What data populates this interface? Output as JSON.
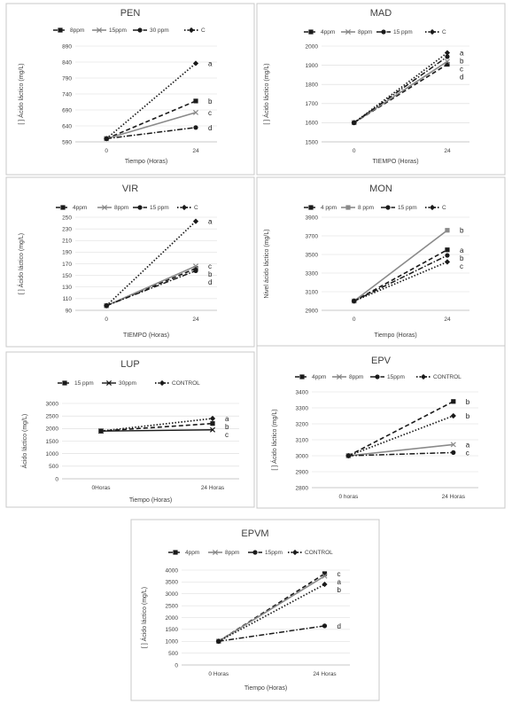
{
  "chart_data": [
    {
      "type": "line",
      "title": "PEN",
      "xlabel": "Tiempo (Horas)",
      "ylabel": "[ ] Ácido láctico (mg/L)",
      "categories": [
        "0",
        "24"
      ],
      "yticks": [
        "590",
        "640",
        "690",
        "740",
        "790",
        "840",
        "890"
      ],
      "ylim": [
        590,
        890
      ],
      "series": [
        {
          "name": "8ppm",
          "values": [
            600,
            718
          ],
          "sig": "b"
        },
        {
          "name": "15ppm",
          "values": [
            600,
            682
          ],
          "sig": "c"
        },
        {
          "name": "30 ppm",
          "values": [
            600,
            635
          ],
          "sig": "d"
        },
        {
          "name": "C",
          "values": [
            600,
            836
          ],
          "sig": "a"
        }
      ]
    },
    {
      "type": "line",
      "title": "MAD",
      "xlabel": "TIEMPO (Horas)",
      "ylabel": "[ ] Ácido láctico (mg/L)",
      "categories": [
        "0",
        "24"
      ],
      "yticks": [
        "1500",
        "1600",
        "1700",
        "1800",
        "1900",
        "2000"
      ],
      "ylim": [
        1500,
        2000
      ],
      "series": [
        {
          "name": "4ppm",
          "values": [
            1600,
            1905
          ],
          "sig": "d"
        },
        {
          "name": "8ppm",
          "values": [
            1600,
            1920
          ],
          "sig": "c"
        },
        {
          "name": "15 ppm",
          "values": [
            1600,
            1945
          ],
          "sig": "b"
        },
        {
          "name": "C",
          "values": [
            1600,
            1965
          ],
          "sig": "a"
        }
      ]
    },
    {
      "type": "line",
      "title": "VIR",
      "xlabel": "TIEMPO (Horas)",
      "ylabel": "[ ] Ácido láctico (mg/L)",
      "categories": [
        "0",
        "24"
      ],
      "yticks": [
        "90",
        "110",
        "130",
        "150",
        "170",
        "190",
        "210",
        "230",
        "250"
      ],
      "ylim": [
        90,
        250
      ],
      "series": [
        {
          "name": "4ppm",
          "values": [
            98,
            162
          ],
          "sig": "b"
        },
        {
          "name": "8ppm",
          "values": [
            98,
            166
          ],
          "sig": "c"
        },
        {
          "name": "15 ppm",
          "values": [
            98,
            158
          ],
          "sig": "d"
        },
        {
          "name": "C",
          "values": [
            98,
            243
          ],
          "sig": "a"
        }
      ]
    },
    {
      "type": "line",
      "title": "MON",
      "xlabel": "Tiempo (Horas)",
      "ylabel": "Nivel ácido láctico (mg/L)",
      "categories": [
        "0",
        "24"
      ],
      "yticks": [
        "2900",
        "3100",
        "3300",
        "3500",
        "3700",
        "3900"
      ],
      "ylim": [
        2900,
        3900
      ],
      "series": [
        {
          "name": "4 ppm",
          "values": [
            3000,
            3550
          ],
          "sig": "a"
        },
        {
          "name": "8 ppm",
          "values": [
            3000,
            3760
          ],
          "sig": "b"
        },
        {
          "name": "15 ppm",
          "values": [
            3000,
            3490
          ],
          "sig": "b"
        },
        {
          "name": "C",
          "values": [
            3000,
            3420
          ],
          "sig": "c"
        }
      ]
    },
    {
      "type": "line",
      "title": "LUP",
      "xlabel": "Tiempo (Horas)",
      "ylabel": "Ácido láctico (mg/L)",
      "ylabel_prefix": "[ ]",
      "categories": [
        "0Horas",
        "24 Horas"
      ],
      "yticks": [
        "0",
        "500",
        "1000",
        "1500",
        "2000",
        "2500",
        "3000"
      ],
      "ylim": [
        0,
        3000
      ],
      "series": [
        {
          "name": "15 ppm",
          "values": [
            1900,
            2200
          ],
          "sig": "b"
        },
        {
          "name": "30ppm",
          "values": [
            1900,
            1950
          ],
          "sig": "c"
        },
        {
          "name": "CONTROL",
          "values": [
            1900,
            2400
          ],
          "sig": "a"
        }
      ]
    },
    {
      "type": "line",
      "title": "EPV",
      "xlabel": "",
      "ylabel": "[ ] Ácido láctico (mg/L)",
      "categories": [
        "0 horas",
        "24 Horas"
      ],
      "yticks": [
        "2800",
        "2900",
        "3000",
        "3100",
        "3200",
        "3300",
        "3400"
      ],
      "ylim": [
        2800,
        3400
      ],
      "series": [
        {
          "name": "4ppm",
          "values": [
            3000,
            3340
          ],
          "sig": "b"
        },
        {
          "name": "8ppm",
          "values": [
            3000,
            3070
          ],
          "sig": "a"
        },
        {
          "name": "15ppm",
          "values": [
            3000,
            3020
          ],
          "sig": "c"
        },
        {
          "name": "CONTROL",
          "values": [
            3000,
            3250
          ],
          "sig": "b"
        }
      ]
    },
    {
      "type": "line",
      "title": "EPVM",
      "xlabel": "Tiempo (Horas)",
      "ylabel": "[ ] Ácido láctico (mg/L)",
      "categories": [
        "0 Horas",
        "24 Horas"
      ],
      "yticks": [
        "0",
        "500",
        "1000",
        "1500",
        "2000",
        "2500",
        "3000",
        "3500",
        "4000"
      ],
      "ylim": [
        0,
        4000
      ],
      "series": [
        {
          "name": "4ppm",
          "values": [
            1000,
            3850
          ],
          "sig": "c"
        },
        {
          "name": "8ppm",
          "values": [
            1000,
            3750
          ],
          "sig": "a"
        },
        {
          "name": "15ppm",
          "values": [
            1000,
            1650
          ],
          "sig": "d"
        },
        {
          "name": "CONTROL",
          "values": [
            1000,
            3400
          ],
          "sig": "b"
        }
      ]
    }
  ]
}
